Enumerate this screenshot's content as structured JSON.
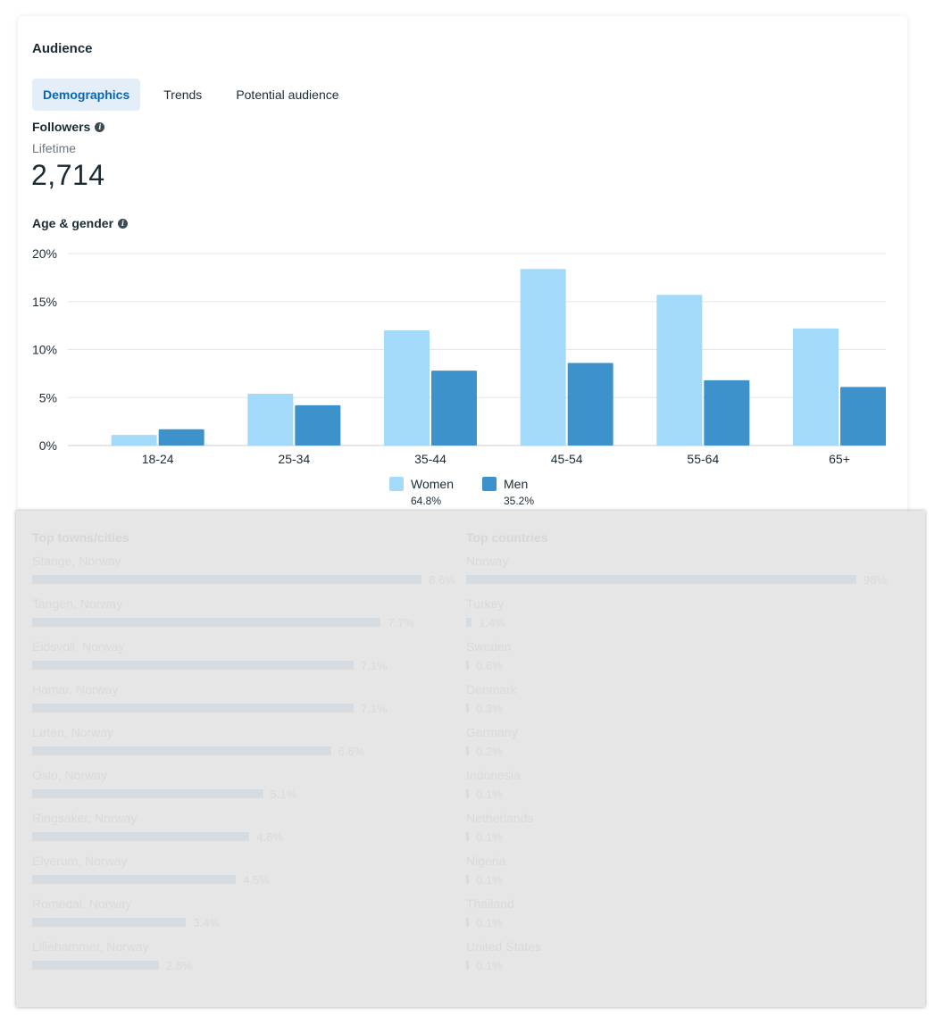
{
  "card": {
    "title": "Audience",
    "tabs": [
      {
        "label": "Demographics",
        "active": true
      },
      {
        "label": "Trends",
        "active": false
      },
      {
        "label": "Potential audience",
        "active": false
      }
    ],
    "followers": {
      "label": "Followers",
      "period": "Lifetime",
      "value": "2,714"
    },
    "age_gender_label": "Age & gender",
    "legend": [
      {
        "name": "Women",
        "pct": "64.8%",
        "color": "#a3dafa"
      },
      {
        "name": "Men",
        "pct": "35.2%",
        "color": "#3d92cc"
      }
    ]
  },
  "chart_data": {
    "type": "bar",
    "categories": [
      "18-24",
      "25-34",
      "35-44",
      "45-54",
      "55-64",
      "65+"
    ],
    "series": [
      {
        "name": "Women",
        "color": "#a3dafa",
        "values": [
          1.1,
          5.4,
          12.0,
          18.4,
          15.7,
          12.2
        ]
      },
      {
        "name": "Men",
        "color": "#3d92cc",
        "values": [
          1.7,
          4.2,
          7.8,
          8.6,
          6.8,
          6.1
        ]
      }
    ],
    "yticks": [
      "0%",
      "5%",
      "10%",
      "15%",
      "20%"
    ],
    "ylim": [
      0,
      20
    ],
    "grid": true
  },
  "locations": {
    "cities": {
      "title": "Top towns/cities",
      "max": 8.6,
      "items": [
        {
          "name": "Stange, Norway",
          "value": 8.6,
          "label": "8.6%"
        },
        {
          "name": "Tangen, Norway",
          "value": 7.7,
          "label": "7.7%"
        },
        {
          "name": "Eidsvoll, Norway",
          "value": 7.1,
          "label": "7.1%"
        },
        {
          "name": "Hamar, Norway",
          "value": 7.1,
          "label": "7.1%"
        },
        {
          "name": "Løten, Norway",
          "value": 6.6,
          "label": "6.6%"
        },
        {
          "name": "Oslo, Norway",
          "value": 5.1,
          "label": "5.1%"
        },
        {
          "name": "Ringsaker, Norway",
          "value": 4.8,
          "label": "4.8%"
        },
        {
          "name": "Elverum, Norway",
          "value": 4.5,
          "label": "4.5%"
        },
        {
          "name": "Romedal, Norway",
          "value": 3.4,
          "label": "3.4%"
        },
        {
          "name": "Lillehammer, Norway",
          "value": 2.8,
          "label": "2.8%"
        }
      ]
    },
    "countries": {
      "title": "Top countries",
      "max": 98,
      "items": [
        {
          "name": "Norway",
          "value": 98,
          "label": "98%"
        },
        {
          "name": "Turkey",
          "value": 1.4,
          "label": "1.4%"
        },
        {
          "name": "Sweden",
          "value": 0.6,
          "label": "0.6%"
        },
        {
          "name": "Denmark",
          "value": 0.3,
          "label": "0.3%"
        },
        {
          "name": "Germany",
          "value": 0.2,
          "label": "0.2%"
        },
        {
          "name": "Indonesia",
          "value": 0.1,
          "label": "0.1%"
        },
        {
          "name": "Netherlands",
          "value": 0.1,
          "label": "0.1%"
        },
        {
          "name": "Nigeria",
          "value": 0.1,
          "label": "0.1%"
        },
        {
          "name": "Thailand",
          "value": 0.1,
          "label": "0.1%"
        },
        {
          "name": "United States",
          "value": 0.1,
          "label": "0.1%"
        }
      ]
    }
  }
}
